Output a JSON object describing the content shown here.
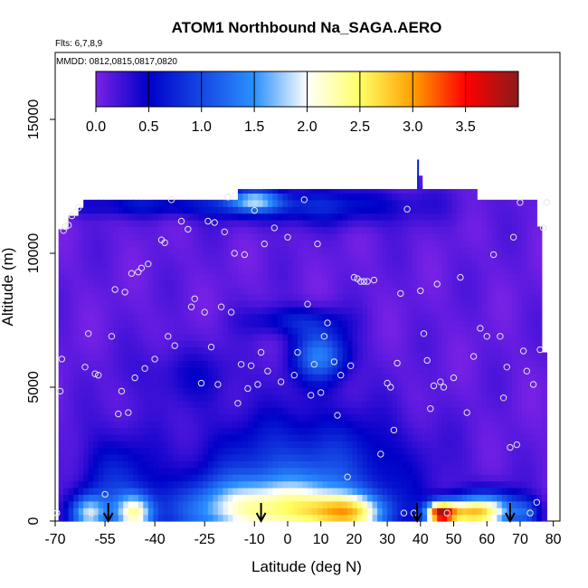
{
  "chart_data": {
    "type": "heatmap",
    "title": "ATOM1 Northbound Na_SAGA.AERO",
    "notes": [
      "Flts: 6,7,8,9",
      "MMDD: 0812,0815,0817,0820"
    ],
    "xlabel": "Latitude (deg N)",
    "ylabel": "Altitude (m)",
    "xlim": [
      -70,
      82
    ],
    "ylim": [
      0,
      17500
    ],
    "x_ticks": [
      -70,
      -55,
      -40,
      -25,
      -10,
      0,
      10,
      20,
      30,
      40,
      50,
      60,
      70,
      80
    ],
    "x_tick_labels": [
      "-70",
      "-55",
      "-40",
      "-25",
      "-10",
      "0",
      "10",
      "20",
      "30",
      "40",
      "50",
      "60",
      "70",
      "80"
    ],
    "y_ticks": [
      0,
      5000,
      10000,
      15000
    ],
    "y_tick_labels": [
      "0",
      "5000",
      "10000",
      "15000"
    ],
    "colorbar": {
      "range": [
        0,
        4
      ],
      "ticks": [
        0.0,
        0.5,
        1.0,
        1.5,
        2.0,
        2.5,
        3.0,
        3.5
      ],
      "tick_labels": [
        "0.0",
        "0.5",
        "1.0",
        "1.5",
        "2.0",
        "2.5",
        "3.0",
        "3.5"
      ],
      "colors": [
        "#7a22e6",
        "#0000c8",
        "#2a90ff",
        "#ffffff",
        "#ffff66",
        "#ffa000",
        "#ff0000",
        "#8b1a1a"
      ]
    },
    "background_value": 0.1,
    "blobs": [
      {
        "x": -60,
        "y": 300,
        "sx": 4,
        "sy": 500,
        "v": 1.5
      },
      {
        "x": -46,
        "y": 300,
        "sx": 4,
        "sy": 500,
        "v": 1.7
      },
      {
        "x": -52,
        "y": 1400,
        "sx": 8,
        "sy": 1400,
        "v": 0.6
      },
      {
        "x": -8,
        "y": 400,
        "sx": 18,
        "sy": 800,
        "v": 1.8
      },
      {
        "x": 5,
        "y": 1800,
        "sx": 22,
        "sy": 1600,
        "v": 0.9
      },
      {
        "x": 18,
        "y": 300,
        "sx": 8,
        "sy": 500,
        "v": 1.8
      },
      {
        "x": 46,
        "y": 300,
        "sx": 3,
        "sy": 300,
        "v": 2.8
      },
      {
        "x": 53,
        "y": 300,
        "sx": 6,
        "sy": 400,
        "v": 2.0
      },
      {
        "x": 62,
        "y": 400,
        "sx": 6,
        "sy": 500,
        "v": 1.5
      },
      {
        "x": 72,
        "y": 300,
        "sx": 3,
        "sy": 400,
        "v": 0.7
      },
      {
        "x": 10,
        "y": 6200,
        "sx": 6,
        "sy": 700,
        "v": 1.2
      },
      {
        "x": 2,
        "y": 7500,
        "sx": 10,
        "sy": 400,
        "v": 0.55
      },
      {
        "x": -30,
        "y": 5500,
        "sx": 12,
        "sy": 800,
        "v": 0.3
      },
      {
        "x": -10,
        "y": 12000,
        "sx": 6,
        "sy": 300,
        "v": 1.2
      },
      {
        "x": 10,
        "y": 11800,
        "sx": 22,
        "sy": 500,
        "v": 0.55
      },
      {
        "x": -40,
        "y": 11800,
        "sx": 25,
        "sy": 300,
        "v": 0.45
      }
    ],
    "points": [
      [
        -69.5,
        300
      ],
      [
        -68.5,
        4850
      ],
      [
        -68,
        6050
      ],
      [
        -67.5,
        10850
      ],
      [
        -67,
        11000
      ],
      [
        -66,
        11050
      ],
      [
        -65,
        11400
      ],
      [
        -63,
        11700
      ],
      [
        -61,
        5750
      ],
      [
        -60,
        7000
      ],
      [
        -59,
        300
      ],
      [
        -58,
        5500
      ],
      [
        -57,
        5450
      ],
      [
        -55,
        1000
      ],
      [
        -53,
        6900
      ],
      [
        -52,
        8650
      ],
      [
        -51,
        4000
      ],
      [
        -50,
        4850
      ],
      [
        -49,
        8550
      ],
      [
        -48,
        4050
      ],
      [
        -47,
        9250
      ],
      [
        -46,
        5350
      ],
      [
        -45,
        9300
      ],
      [
        -44,
        9450
      ],
      [
        -43,
        5700
      ],
      [
        -42,
        9600
      ],
      [
        -40,
        6050
      ],
      [
        -38,
        10500
      ],
      [
        -37,
        10400
      ],
      [
        -36,
        6900
      ],
      [
        -35,
        12000
      ],
      [
        -34,
        6550
      ],
      [
        -32,
        11200
      ],
      [
        -30,
        10900
      ],
      [
        -29,
        8000
      ],
      [
        -28,
        8300
      ],
      [
        -26,
        5150
      ],
      [
        -25,
        7800
      ],
      [
        -24,
        11200
      ],
      [
        -23,
        6500
      ],
      [
        -22,
        11150
      ],
      [
        -21,
        5100
      ],
      [
        -20,
        8000
      ],
      [
        -19,
        10800
      ],
      [
        -18,
        12100
      ],
      [
        -17,
        7800
      ],
      [
        -16,
        10000
      ],
      [
        -15,
        4400
      ],
      [
        -14,
        5850
      ],
      [
        -13,
        9950
      ],
      [
        -12,
        4950
      ],
      [
        -11,
        5800
      ],
      [
        -10,
        11600
      ],
      [
        -9,
        5100
      ],
      [
        -8,
        6300
      ],
      [
        -7,
        10350
      ],
      [
        -6,
        5600
      ],
      [
        -4,
        10950
      ],
      [
        -2,
        5200
      ],
      [
        0,
        10600
      ],
      [
        2,
        5450
      ],
      [
        3,
        6300
      ],
      [
        5,
        12000
      ],
      [
        6,
        8100
      ],
      [
        7,
        4700
      ],
      [
        8,
        5850
      ],
      [
        9,
        10350
      ],
      [
        10,
        4800
      ],
      [
        11,
        6900
      ],
      [
        12,
        7400
      ],
      [
        14,
        5950
      ],
      [
        15,
        3950
      ],
      [
        16,
        5450
      ],
      [
        18,
        1650
      ],
      [
        19,
        5800
      ],
      [
        20,
        9100
      ],
      [
        21,
        9050
      ],
      [
        22,
        8950
      ],
      [
        23,
        8950
      ],
      [
        24,
        8950
      ],
      [
        26,
        9000
      ],
      [
        28,
        2500
      ],
      [
        30,
        5150
      ],
      [
        31,
        5000
      ],
      [
        32,
        3400
      ],
      [
        33,
        5900
      ],
      [
        34,
        8500
      ],
      [
        35,
        300
      ],
      [
        36,
        11650
      ],
      [
        38,
        300
      ],
      [
        40,
        8600
      ],
      [
        41,
        7000
      ],
      [
        42,
        6000
      ],
      [
        43,
        4200
      ],
      [
        44,
        5050
      ],
      [
        45,
        8850
      ],
      [
        46,
        5200
      ],
      [
        47,
        5000
      ],
      [
        48,
        300
      ],
      [
        50,
        5350
      ],
      [
        52,
        9100
      ],
      [
        54,
        4050
      ],
      [
        56,
        6150
      ],
      [
        58,
        7200
      ],
      [
        60,
        6900
      ],
      [
        62,
        9950
      ],
      [
        64,
        6900
      ],
      [
        65,
        4600
      ],
      [
        66,
        5750
      ],
      [
        67,
        2750
      ],
      [
        68,
        10600
      ],
      [
        69,
        2850
      ],
      [
        70,
        11900
      ],
      [
        71,
        6350
      ],
      [
        72,
        5600
      ],
      [
        73,
        300
      ],
      [
        74,
        5100
      ],
      [
        75,
        700
      ],
      [
        76,
        6400
      ],
      [
        77,
        10950
      ],
      [
        78,
        11900
      ]
    ],
    "arrows_x": [
      -54,
      -8,
      39,
      67
    ]
  }
}
